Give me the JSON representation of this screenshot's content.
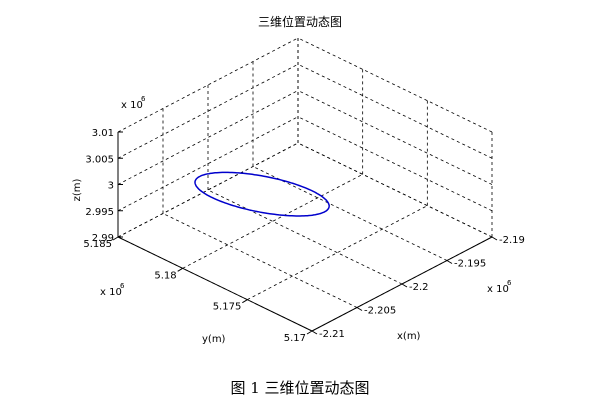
{
  "chart_data": {
    "type": "line3d",
    "title": "三维位置动态图",
    "xlabel": "x(m)",
    "ylabel": "y(m)",
    "zlabel": "z(m)",
    "x_exponent": "x 10",
    "x_exponent_power": "6",
    "y_exponent": "x 10",
    "y_exponent_power": "6",
    "z_exponent": "x 10",
    "z_exponent_power": "6",
    "xlim": [
      -2.21,
      -2.19
    ],
    "ylim": [
      5.17,
      5.185
    ],
    "zlim": [
      2.99,
      3.01
    ],
    "x_ticks": [
      -2.21,
      -2.205,
      -2.2,
      -2.195,
      -2.19
    ],
    "x_tick_labels": [
      "-2.21",
      "-2.205",
      "-2.2",
      "-2.195",
      "-2.19"
    ],
    "y_ticks": [
      5.17,
      5.175,
      5.18,
      5.185
    ],
    "y_tick_labels": [
      "5.17",
      "5.175",
      "5.18",
      "5.185"
    ],
    "z_ticks": [
      2.99,
      2.995,
      3.0,
      3.005,
      3.01
    ],
    "z_tick_labels": [
      "2.99",
      "2.995",
      "3",
      "3.005",
      "3.01"
    ],
    "grid": true,
    "series": [
      {
        "color": "#0000cc",
        "shape": "ellipse",
        "center": [
          -2.2029,
          5.1788,
          2.9992
        ],
        "axis_a": [
          -0.0006,
          -0.0055,
          0.0042
        ],
        "axis_b": [
          0.0022,
          0.0005,
          0.0004
        ]
      }
    ]
  },
  "caption": "图 1   三维位置动态图"
}
